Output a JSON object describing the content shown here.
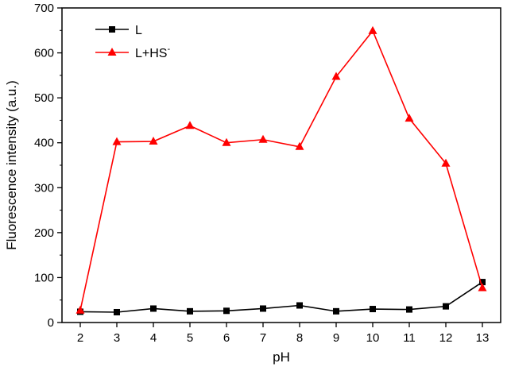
{
  "chart_data": {
    "type": "line",
    "title": "",
    "xlabel": "pH",
    "ylabel": "Fluorescence intensity (a.u.)",
    "x": [
      2,
      3,
      4,
      5,
      6,
      7,
      8,
      9,
      10,
      11,
      12,
      13
    ],
    "xlim": [
      1.5,
      13.5
    ],
    "ylim": [
      0,
      700
    ],
    "xticks": [
      "2",
      "3",
      "4",
      "5",
      "6",
      "7",
      "8",
      "9",
      "10",
      "11",
      "12",
      "13"
    ],
    "yticks": [
      "0",
      "100",
      "200",
      "300",
      "400",
      "500",
      "600",
      "700"
    ],
    "grid": false,
    "legend_position": "top-left",
    "series": [
      {
        "name": "L",
        "marker": "square",
        "color": "#000000",
        "values": [
          24,
          23,
          31,
          25,
          26,
          31,
          38,
          25,
          30,
          29,
          36,
          90
        ]
      },
      {
        "name": "L+HS",
        "name_superscript": "-",
        "marker": "triangle",
        "color": "#ff0000",
        "values": [
          27,
          402,
          403,
          438,
          400,
          407,
          391,
          547,
          649,
          454,
          354,
          77
        ]
      }
    ]
  }
}
